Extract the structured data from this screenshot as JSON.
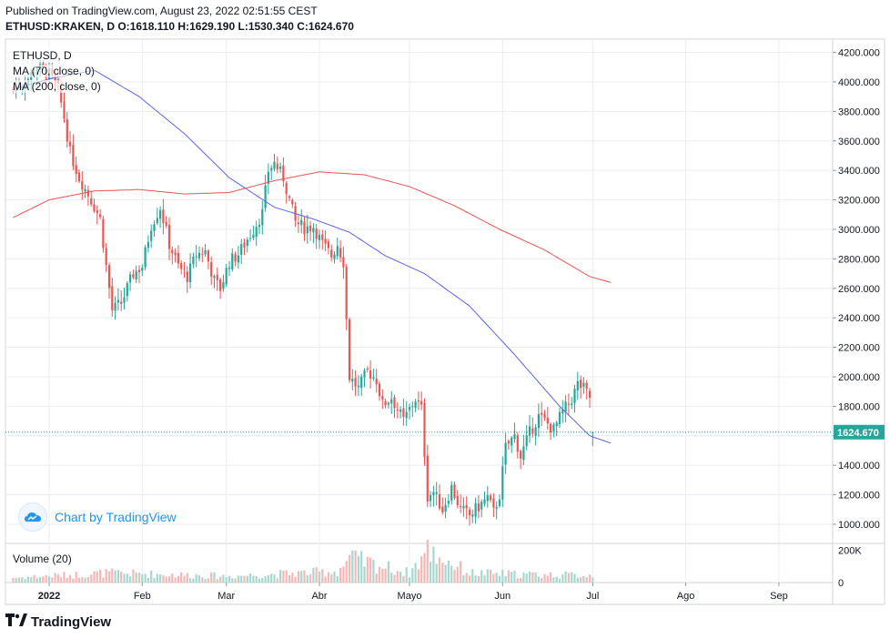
{
  "header": {
    "published": "Published on TradingView.com, August 23, 2022 02:51:55 CEST",
    "symbol": "ETHUSD:KRAKEN, D",
    "o_label": "O:",
    "o": "1618.110",
    "h_label": "H:",
    "h": "1629.190",
    "l_label": "L:",
    "l": "1530.340",
    "c_label": "C:",
    "c": "1624.670"
  },
  "legend": {
    "symbol": "ETHUSD, D",
    "ma1": "MA (70, close, 0)",
    "ma2": "MA (200, close, 0)",
    "volume": "Volume (20)"
  },
  "watermark": "Chart by TradingView",
  "brand": "TradingView",
  "colors": {
    "up": "#26a69a",
    "down": "#ef5350",
    "ma70": "#5b63e8",
    "ma200": "#ef5350",
    "grid": "#e9edf2",
    "axis_text": "#131722",
    "price_tag": "#26a69a",
    "volume_up": "#a5d8cf",
    "volume_down": "#f6b7b5"
  },
  "chart_data": {
    "type": "candlestick",
    "title": "ETHUSD:KRAKEN, D",
    "y_axis": {
      "min": 870,
      "max": 4290,
      "ticks": [
        1000,
        1200,
        1400,
        1600,
        1800,
        2000,
        2200,
        2400,
        2600,
        2800,
        3000,
        3200,
        3400,
        3600,
        3800,
        4000,
        4200
      ],
      "tick_labels": [
        "1000.000",
        "1200.000",
        "1400.000",
        "1600.000",
        "1800.000",
        "2000.000",
        "2200.000",
        "2400.000",
        "2600.000",
        "2800.000",
        "3000.000",
        "3200.000",
        "3400.000",
        "3600.000",
        "3800.000",
        "4000.000",
        "4200.000"
      ]
    },
    "x_axis": {
      "labels": [
        "2022",
        "Feb",
        "Mar",
        "Abr",
        "Mayo",
        "Jun",
        "Jul",
        "Ago",
        "Sep"
      ],
      "label_days": [
        0,
        31,
        59,
        90,
        120,
        151,
        181,
        212,
        243
      ]
    },
    "last_price": 1624.67,
    "last_price_label": "1624.670",
    "volume_axis": {
      "max": 220000,
      "labels": [
        "200K",
        "0"
      ],
      "label_values": [
        200000,
        0
      ]
    },
    "first_day_offset": -12,
    "anchors": [
      [
        -12,
        3950
      ],
      [
        -8,
        4000
      ],
      [
        -4,
        4100
      ],
      [
        0,
        4050
      ],
      [
        3,
        3950
      ],
      [
        5,
        3760
      ],
      [
        7,
        3520
      ],
      [
        10,
        3350
      ],
      [
        14,
        3200
      ],
      [
        17,
        3070
      ],
      [
        19,
        2750
      ],
      [
        21,
        2450
      ],
      [
        24,
        2500
      ],
      [
        28,
        2700
      ],
      [
        31,
        2750
      ],
      [
        34,
        3030
      ],
      [
        37,
        3150
      ],
      [
        40,
        2900
      ],
      [
        43,
        2750
      ],
      [
        46,
        2680
      ],
      [
        49,
        2830
      ],
      [
        52,
        2850
      ],
      [
        55,
        2650
      ],
      [
        57,
        2600
      ],
      [
        60,
        2780
      ],
      [
        63,
        2830
      ],
      [
        65,
        2900
      ],
      [
        68,
        3000
      ],
      [
        71,
        3110
      ],
      [
        73,
        3400
      ],
      [
        75,
        3450
      ],
      [
        78,
        3350
      ],
      [
        80,
        3200
      ],
      [
        82,
        3050
      ],
      [
        85,
        3010
      ],
      [
        88,
        3020
      ],
      [
        91,
        2900
      ],
      [
        94,
        2820
      ],
      [
        96,
        2900
      ],
      [
        98,
        2780
      ],
      [
        100,
        2000
      ],
      [
        103,
        1920
      ],
      [
        106,
        2040
      ],
      [
        109,
        1980
      ],
      [
        111,
        1810
      ],
      [
        114,
        1860
      ],
      [
        118,
        1700
      ],
      [
        120,
        1780
      ],
      [
        122,
        1850
      ],
      [
        124,
        1780
      ],
      [
        126,
        1190
      ],
      [
        128,
        1220
      ],
      [
        131,
        1100
      ],
      [
        134,
        1250
      ],
      [
        137,
        1100
      ],
      [
        140,
        1060
      ],
      [
        143,
        1120
      ],
      [
        146,
        1180
      ],
      [
        148,
        1080
      ],
      [
        150,
        1200
      ],
      [
        152,
        1520
      ],
      [
        155,
        1600
      ],
      [
        157,
        1460
      ],
      [
        160,
        1620
      ],
      [
        163,
        1730
      ],
      [
        165,
        1700
      ],
      [
        168,
        1640
      ],
      [
        171,
        1760
      ],
      [
        174,
        1850
      ],
      [
        176,
        1950
      ],
      [
        178,
        1920
      ],
      [
        180,
        1860
      ],
      [
        181,
        1625
      ]
    ],
    "ma70_anchors": [
      [
        -12,
        3950
      ],
      [
        0,
        4020
      ],
      [
        15,
        4080
      ],
      [
        30,
        3900
      ],
      [
        45,
        3650
      ],
      [
        60,
        3350
      ],
      [
        75,
        3150
      ],
      [
        88,
        3070
      ],
      [
        100,
        2980
      ],
      [
        112,
        2820
      ],
      [
        125,
        2700
      ],
      [
        140,
        2480
      ],
      [
        155,
        2150
      ],
      [
        170,
        1800
      ],
      [
        180,
        1600
      ],
      [
        187,
        1550
      ]
    ],
    "ma200_anchors": [
      [
        -12,
        3080
      ],
      [
        0,
        3200
      ],
      [
        15,
        3260
      ],
      [
        30,
        3270
      ],
      [
        45,
        3240
      ],
      [
        60,
        3250
      ],
      [
        75,
        3330
      ],
      [
        90,
        3390
      ],
      [
        105,
        3370
      ],
      [
        120,
        3290
      ],
      [
        135,
        3160
      ],
      [
        150,
        3000
      ],
      [
        165,
        2860
      ],
      [
        180,
        2680
      ],
      [
        187,
        2640
      ]
    ],
    "volume_profile": [
      [
        -12,
        30000
      ],
      [
        20,
        60000
      ],
      [
        60,
        40000
      ],
      [
        96,
        70000
      ],
      [
        100,
        150000
      ],
      [
        120,
        60000
      ],
      [
        126,
        200000
      ],
      [
        140,
        60000
      ],
      [
        160,
        50000
      ],
      [
        181,
        45000
      ]
    ]
  }
}
